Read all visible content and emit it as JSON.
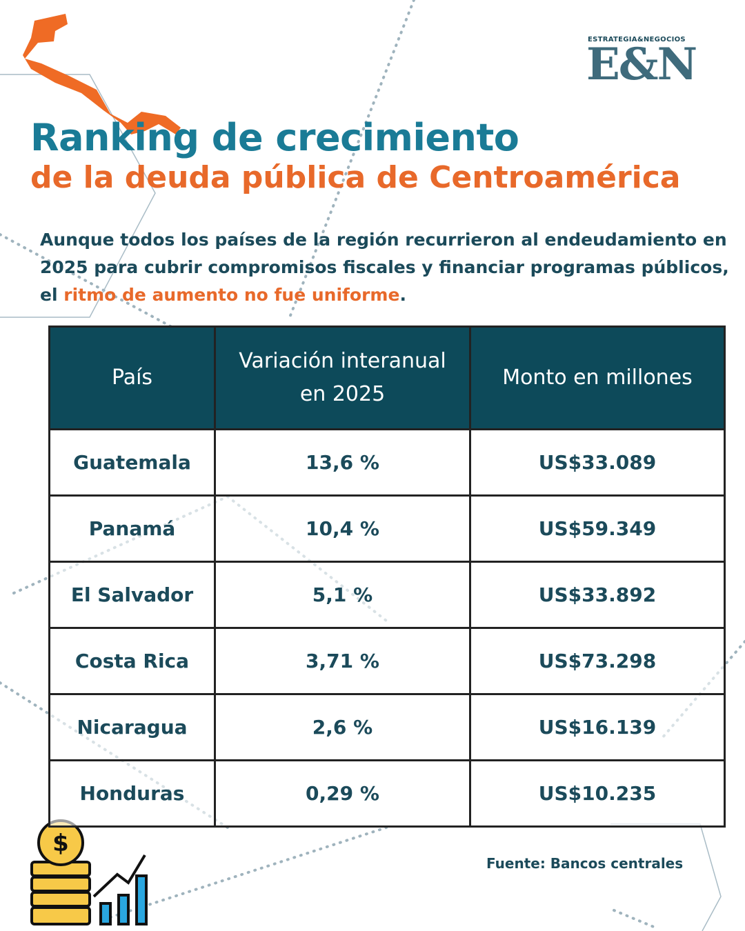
{
  "logo": {
    "tagline": "ESTRATEGIA&NEGOCIOS",
    "mark": "E&N"
  },
  "header": {
    "title": "Ranking de crecimiento",
    "subtitle": "de la deuda pública de Centroamérica"
  },
  "intro": {
    "text": "Aunque todos los países de la región recurrieron al endeudamiento en 2025 para cubrir compromisos fiscales y financiar programas públicos, el ",
    "highlight": "ritmo de aumento no fue uniforme",
    "end": "."
  },
  "table": {
    "headers": [
      "País",
      "Variación interanual en 2025",
      "Monto en millones"
    ],
    "rows": [
      [
        "Guatemala",
        "13,6 %",
        "US$33.089"
      ],
      [
        "Panamá",
        "10,4 %",
        "US$59.349"
      ],
      [
        "El Salvador",
        "5,1 %",
        "US$33.892"
      ],
      [
        "Costa Rica",
        "3,71 %",
        "US$73.298"
      ],
      [
        "Nicaragua",
        "2,6 %",
        "US$16.139"
      ],
      [
        "Honduras",
        "0,29 %",
        "US$10.235"
      ]
    ]
  },
  "source": "Fuente: Bancos centrales"
}
